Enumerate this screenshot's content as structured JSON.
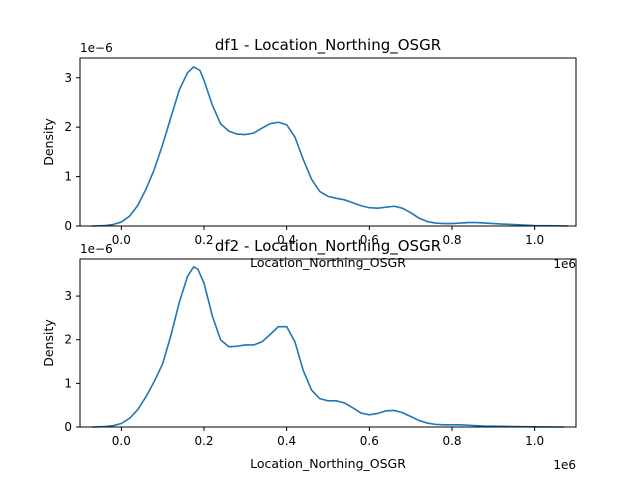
{
  "colors": {
    "line": "#1f77b4",
    "axis": "#000000",
    "background": "#ffffff"
  },
  "chart_data": [
    {
      "type": "line",
      "title": "df1 - Location_Northing_OSGR",
      "xlabel": "Location_Northing_OSGR",
      "ylabel": "Density",
      "x_offset_label": "1e6",
      "y_offset_label": "1e−6",
      "xlim": [
        -0.1,
        1.1
      ],
      "ylim": [
        0,
        3.4
      ],
      "x_ticks": [
        0.0,
        0.2,
        0.4,
        0.6,
        0.8,
        1.0
      ],
      "x_tick_labels": [
        "0.0",
        "0.2",
        "0.4",
        "0.6",
        "0.8",
        "1.0"
      ],
      "y_ticks": [
        0,
        1,
        2,
        3
      ],
      "y_tick_labels": [
        "0",
        "1",
        "2",
        "3"
      ],
      "grid": false,
      "series": [
        {
          "x": [
            -0.07,
            -0.04,
            -0.02,
            0.0,
            0.02,
            0.04,
            0.06,
            0.08,
            0.1,
            0.12,
            0.14,
            0.16,
            0.175,
            0.19,
            0.2,
            0.22,
            0.24,
            0.26,
            0.28,
            0.3,
            0.32,
            0.34,
            0.36,
            0.38,
            0.4,
            0.42,
            0.44,
            0.46,
            0.48,
            0.5,
            0.52,
            0.54,
            0.56,
            0.58,
            0.6,
            0.62,
            0.64,
            0.66,
            0.68,
            0.7,
            0.72,
            0.74,
            0.76,
            0.78,
            0.8,
            0.82,
            0.84,
            0.86,
            0.88,
            0.9,
            0.92,
            0.95,
            1.0,
            1.05,
            1.08
          ],
          "y": [
            0.0,
            0.01,
            0.03,
            0.08,
            0.2,
            0.42,
            0.75,
            1.15,
            1.65,
            2.2,
            2.75,
            3.1,
            3.22,
            3.15,
            2.95,
            2.45,
            2.07,
            1.92,
            1.86,
            1.85,
            1.88,
            1.98,
            2.07,
            2.1,
            2.05,
            1.8,
            1.35,
            0.95,
            0.7,
            0.6,
            0.56,
            0.53,
            0.47,
            0.41,
            0.37,
            0.36,
            0.38,
            0.4,
            0.36,
            0.27,
            0.16,
            0.09,
            0.06,
            0.05,
            0.05,
            0.06,
            0.07,
            0.07,
            0.06,
            0.05,
            0.04,
            0.03,
            0.01,
            0.005,
            0.0
          ]
        }
      ]
    },
    {
      "type": "line",
      "title": "df2 - Location_Northing_OSGR",
      "xlabel": "Location_Northing_OSGR",
      "ylabel": "Density",
      "x_offset_label": "1e6",
      "y_offset_label": "1e−6",
      "xlim": [
        -0.1,
        1.1
      ],
      "ylim": [
        0,
        3.85
      ],
      "x_ticks": [
        0.0,
        0.2,
        0.4,
        0.6,
        0.8,
        1.0
      ],
      "x_tick_labels": [
        "0.0",
        "0.2",
        "0.4",
        "0.6",
        "0.8",
        "1.0"
      ],
      "y_ticks": [
        0,
        1,
        2,
        3
      ],
      "y_tick_labels": [
        "0",
        "1",
        "2",
        "3"
      ],
      "grid": false,
      "series": [
        {
          "x": [
            -0.07,
            -0.04,
            -0.02,
            0.0,
            0.02,
            0.04,
            0.06,
            0.08,
            0.1,
            0.12,
            0.14,
            0.16,
            0.175,
            0.185,
            0.2,
            0.22,
            0.24,
            0.26,
            0.28,
            0.3,
            0.32,
            0.34,
            0.36,
            0.38,
            0.4,
            0.42,
            0.44,
            0.46,
            0.48,
            0.5,
            0.52,
            0.54,
            0.56,
            0.58,
            0.6,
            0.62,
            0.64,
            0.66,
            0.68,
            0.7,
            0.72,
            0.74,
            0.76,
            0.78,
            0.8,
            0.82,
            0.84,
            0.86,
            0.88,
            0.9,
            0.95,
            1.0,
            1.05,
            1.07
          ],
          "y": [
            0.0,
            0.01,
            0.03,
            0.08,
            0.2,
            0.4,
            0.7,
            1.05,
            1.45,
            2.1,
            2.85,
            3.45,
            3.67,
            3.62,
            3.3,
            2.55,
            2.0,
            1.84,
            1.85,
            1.88,
            1.88,
            1.95,
            2.12,
            2.3,
            2.3,
            1.95,
            1.3,
            0.85,
            0.65,
            0.6,
            0.6,
            0.55,
            0.44,
            0.32,
            0.28,
            0.31,
            0.37,
            0.38,
            0.33,
            0.24,
            0.15,
            0.09,
            0.06,
            0.05,
            0.05,
            0.05,
            0.04,
            0.03,
            0.02,
            0.02,
            0.01,
            0.005,
            0.0,
            0.0
          ]
        }
      ]
    }
  ]
}
